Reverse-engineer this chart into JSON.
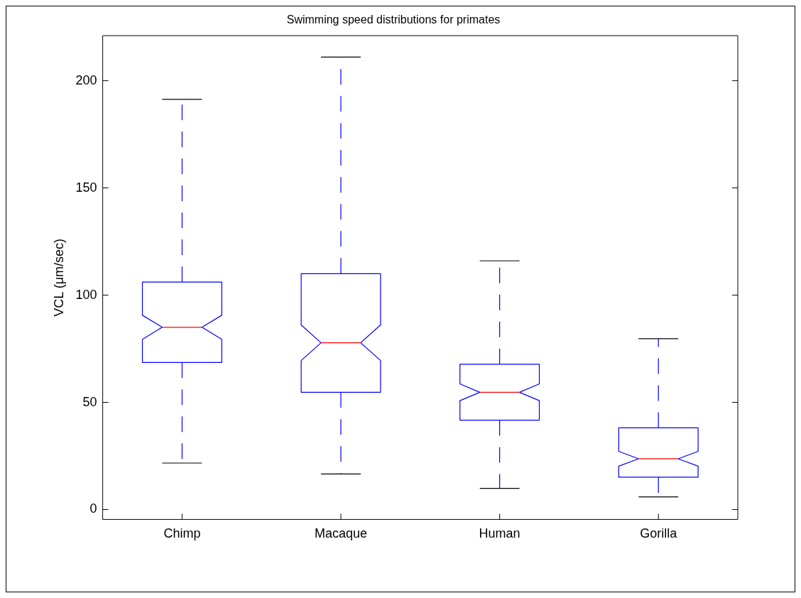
{
  "chart_data": {
    "type": "box",
    "title": "Swimming speed distributions for primates",
    "ylabel": "VCL (μm/sec)",
    "categories": [
      "Chimp",
      "Macaque",
      "Human",
      "Gorilla"
    ],
    "series": [
      {
        "color": "#0000ff",
        "boxes": [
          {
            "low": 21.7,
            "q1": 68.6,
            "median": 85,
            "q3": 106.1,
            "high": 191.3
          },
          {
            "low": 16.6,
            "q1": 54.7,
            "median": 77.8,
            "q3": 110,
            "high": 211
          },
          {
            "low": 9.9,
            "q1": 41.7,
            "median": 54.7,
            "q3": 67.8,
            "high": 116
          },
          {
            "low": 5.9,
            "q1": 15.1,
            "median": 23.7,
            "q3": 38.1,
            "high": 79.7
          }
        ]
      }
    ],
    "ylim": [
      -4.6,
      221
    ],
    "yticks": [
      0,
      50,
      100,
      150,
      200
    ],
    "grid": false,
    "legend": false
  }
}
